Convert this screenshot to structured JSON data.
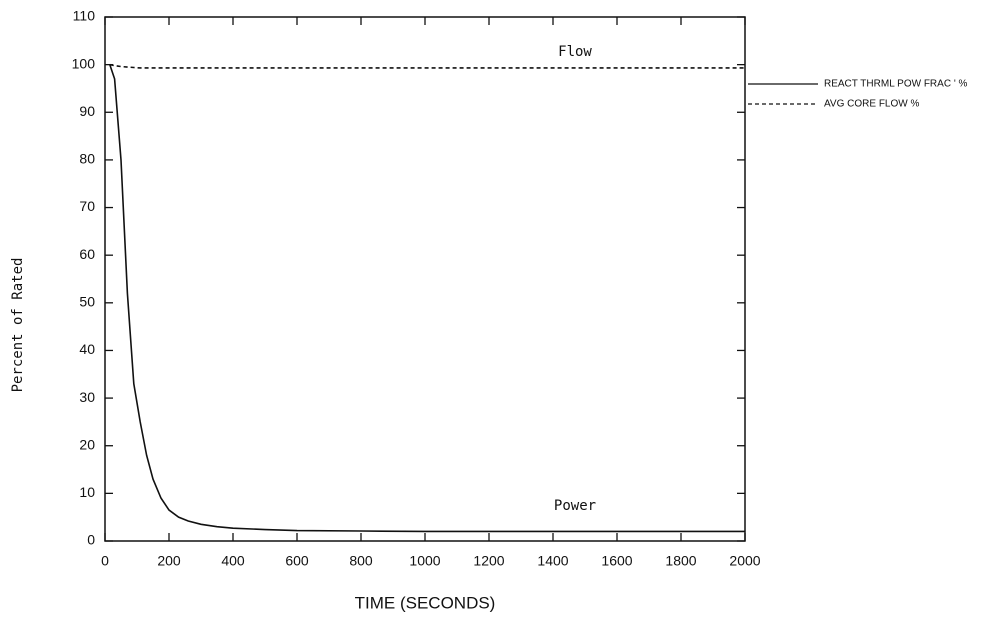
{
  "chart_data": {
    "type": "line",
    "xlabel": "TIME (SECONDS)",
    "ylabel": "Percent of Rated",
    "annotations": [
      "Flow",
      "Power"
    ],
    "x": [
      15,
      30,
      50,
      70,
      90,
      110,
      130,
      150,
      175,
      200,
      230,
      260,
      300,
      350,
      400,
      500,
      600,
      800,
      1000,
      1500,
      2000
    ],
    "series": [
      {
        "name": "REACT THRML POW FRAC ' %",
        "color": "#111111",
        "dash": "solid",
        "values": [
          100,
          97,
          80,
          52,
          33,
          25,
          18,
          13,
          9,
          6.5,
          5,
          4.2,
          3.5,
          3,
          2.7,
          2.4,
          2.2,
          2.1,
          2,
          2,
          2
        ]
      },
      {
        "name": "AVG CORE FLOW %",
        "color": "#111111",
        "dash": "dashed",
        "values": [
          100,
          99.8,
          99.6,
          99.5,
          99.4,
          99.3,
          99.3,
          99.3,
          99.3,
          99.3,
          99.3,
          99.3,
          99.3,
          99.3,
          99.3,
          99.3,
          99.3,
          99.3,
          99.3,
          99.3,
          99.3
        ]
      }
    ],
    "xlim": [
      0,
      2000
    ],
    "xticks": [
      0,
      200,
      400,
      600,
      800,
      1000,
      1200,
      1400,
      1600,
      1800,
      2000
    ],
    "ylim": [
      0,
      110
    ],
    "yticks": [
      0,
      10,
      20,
      30,
      40,
      50,
      60,
      70,
      80,
      90,
      100,
      110
    ],
    "grid": false,
    "legend": "right"
  }
}
